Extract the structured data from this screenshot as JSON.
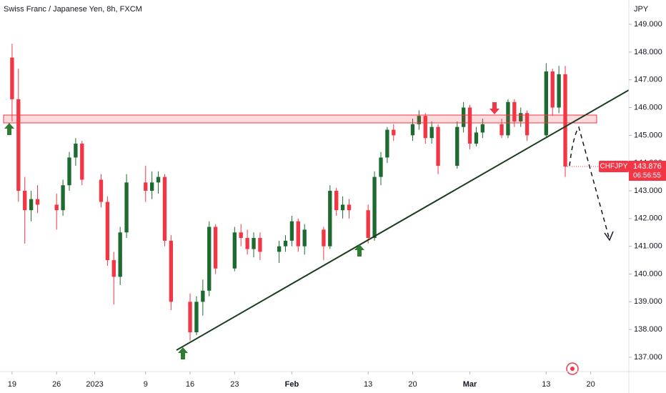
{
  "chart_data": {
    "type": "candlestick",
    "title": "Swiss Franc / Japanese Yen, 8h, FXCM",
    "y_axis_label": "JPY",
    "symbol": "CHFJPY",
    "last_price": 143.876,
    "countdown": "06:56:55",
    "up_color": "#1e6b32",
    "down_color": "#f23645",
    "grid": false,
    "x": [
      0,
      1,
      2,
      3,
      4,
      7,
      8,
      9,
      10,
      11,
      14,
      15,
      16,
      17,
      18,
      21,
      22,
      23,
      24,
      25,
      28,
      29,
      30,
      31,
      32,
      35,
      36,
      37,
      38,
      39,
      42,
      43,
      44,
      45,
      46,
      49,
      50,
      51,
      52,
      53,
      56,
      57,
      58,
      59,
      60,
      63,
      64,
      65,
      66,
      67,
      70,
      71,
      72,
      73,
      74,
      77,
      78,
      79,
      80,
      81,
      84,
      85,
      86,
      87
    ],
    "open": [
      147.8,
      146.3,
      143.0,
      142.3,
      142.7,
      142.5,
      142.3,
      143.2,
      144.2,
      144.7,
      143.4,
      142.6,
      140.5,
      139.9,
      141.5,
      143.3,
      143.0,
      143.3,
      143.5,
      141.2,
      139.0,
      137.9,
      139.0,
      139.4,
      141.7,
      140.2,
      141.5,
      141.3,
      140.9,
      141.3,
      140.8,
      141.0,
      141.2,
      141.9,
      141.0,
      141.6,
      141.0,
      143.0,
      142.3,
      142.5,
      142.3,
      141.3,
      143.5,
      144.2,
      145.2,
      145.0,
      145.4,
      145.7,
      144.9,
      145.3,
      143.9,
      145.3,
      146.0,
      144.7,
      145.1,
      145.4,
      145.0,
      146.2,
      145.5,
      145.8,
      145.0,
      147.3,
      146.0,
      147.2
    ],
    "high": [
      148.3,
      147.4,
      143.5,
      143.0,
      143.2,
      142.9,
      143.4,
      144.4,
      144.9,
      144.8,
      143.6,
      142.8,
      140.8,
      141.7,
      143.6,
      143.9,
      143.7,
      143.7,
      143.6,
      141.4,
      139.3,
      139.2,
      139.8,
      141.9,
      141.8,
      141.7,
      141.8,
      141.6,
      141.5,
      141.5,
      141.2,
      141.4,
      142.1,
      142.0,
      141.8,
      141.7,
      143.2,
      143.1,
      142.8,
      142.7,
      142.5,
      143.7,
      144.4,
      145.3,
      145.4,
      145.6,
      145.9,
      145.8,
      145.5,
      145.4,
      145.5,
      146.2,
      146.1,
      145.3,
      145.6,
      145.6,
      146.3,
      146.3,
      146.0,
      145.9,
      147.6,
      147.4,
      147.5,
      147.5
    ],
    "low": [
      145.5,
      142.6,
      141.1,
      141.9,
      142.2,
      141.6,
      142.1,
      143.0,
      143.9,
      143.2,
      142.4,
      140.3,
      138.9,
      139.6,
      141.3,
      142.6,
      142.7,
      142.9,
      141.0,
      138.7,
      137.6,
      137.8,
      138.5,
      139.2,
      140.0,
      140.1,
      141.0,
      140.7,
      140.6,
      140.5,
      140.4,
      140.8,
      141.0,
      140.8,
      140.7,
      140.5,
      140.9,
      142.1,
      142.0,
      142.0,
      141.1,
      141.2,
      143.2,
      144.0,
      144.8,
      144.8,
      145.2,
      144.7,
      144.7,
      143.6,
      143.8,
      145.1,
      144.5,
      144.6,
      144.9,
      144.9,
      144.9,
      145.3,
      145.3,
      144.8,
      144.9,
      145.7,
      145.8,
      143.5
    ],
    "close": [
      146.3,
      143.0,
      142.3,
      142.7,
      142.5,
      142.3,
      143.2,
      144.2,
      144.7,
      143.4,
      142.6,
      140.5,
      139.9,
      141.5,
      143.3,
      143.0,
      143.3,
      143.5,
      141.2,
      139.0,
      137.9,
      139.0,
      139.4,
      141.7,
      140.2,
      141.5,
      141.3,
      140.9,
      141.3,
      140.8,
      141.0,
      141.2,
      141.9,
      141.0,
      141.6,
      141.0,
      143.0,
      142.3,
      142.5,
      142.3,
      141.3,
      143.5,
      144.2,
      145.2,
      145.0,
      145.4,
      145.7,
      144.9,
      145.3,
      143.9,
      145.3,
      146.0,
      144.7,
      145.1,
      145.4,
      145.0,
      146.2,
      145.5,
      145.8,
      145.0,
      147.3,
      146.0,
      147.2,
      143.876
    ],
    "xlim": [
      -1.9,
      97.0
    ],
    "ylim": [
      136.485,
      149.876
    ],
    "xticks": [
      {
        "value": 0,
        "label": "19"
      },
      {
        "value": 7,
        "label": "26"
      },
      {
        "value": 13,
        "label": "2023"
      },
      {
        "value": 21,
        "label": "9"
      },
      {
        "value": 28,
        "label": "16"
      },
      {
        "value": 35,
        "label": "23"
      },
      {
        "value": 44,
        "label": "Feb"
      },
      {
        "value": 56,
        "label": "13"
      },
      {
        "value": 63,
        "label": "20"
      },
      {
        "value": 72,
        "label": "Mar"
      },
      {
        "value": 84,
        "label": "13"
      },
      {
        "value": 91,
        "label": "20"
      }
    ],
    "yticks": [
      {
        "value": 137,
        "label": "137.000"
      },
      {
        "value": 138,
        "label": "138.000"
      },
      {
        "value": 139,
        "label": "139.000"
      },
      {
        "value": 140,
        "label": "140.000"
      },
      {
        "value": 141,
        "label": "141.000"
      },
      {
        "value": 142,
        "label": "142.000"
      },
      {
        "value": 143,
        "label": "143.000"
      },
      {
        "value": 144,
        "label": "144.000"
      },
      {
        "value": 145,
        "label": "145.000"
      },
      {
        "value": 146,
        "label": "146.000"
      },
      {
        "value": 147,
        "label": "147.000"
      },
      {
        "value": 148,
        "label": "148.000"
      },
      {
        "value": 149,
        "label": "149.000"
      }
    ]
  }
}
